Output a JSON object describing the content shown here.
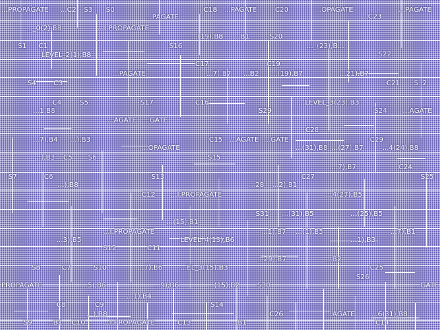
{
  "colors": {
    "background": "#6f68b8",
    "wire": "#ffffff",
    "text": "#ffffff"
  },
  "labels": [
    "...PROPAGATE",
    "...C2",
    "S3",
    "S0",
    "...PAGATE",
    "C18",
    "...PAGATE",
    "C20",
    "...OPAGATE",
    "...C23",
    "...PAGATE",
    "..._0(2),B8",
    "...I.PROPAGATE",
    "...(19),B8",
    "...B1",
    "S20",
    "S1",
    "C1",
    "LEVEL_2(1),B8",
    "S16",
    "..._(23),B...",
    "S22",
    "...PAGATE",
    "C17",
    "C19",
    "...7),B7",
    "...B2",
    "...(19),B7",
    "...21),B7",
    "S4",
    "C3",
    "C21",
    "S..2",
    "C4",
    "S5",
    "S17",
    "C16",
    "...1,B8",
    "S29",
    "...LEVEL_3(23),B3",
    "S24",
    "...AGATE",
    "...AGATE",
    "...GATE",
    "C28",
    "...7),B4",
    "...),B3",
    "...OPAGATE",
    "C15",
    "...AGATE",
    "...GATE",
    "C29",
    "...(31),B8",
    "...(27),B7",
    "...4(24),B8",
    "...),B3",
    "C5",
    "S6",
    "S15",
    "...7),B7",
    "C24",
    "S7",
    "C6",
    "...),B8",
    "S13",
    "...28",
    "...2),B1",
    "C27",
    "S25",
    "C12",
    "...I.PROPAGATE",
    "...4(27),B5",
    "S31",
    "...(31),B5",
    "...(25),B5",
    "...I.PROPAGATE",
    "...(15),B1",
    "...7),B1",
    "...3),B5",
    "C11",
    "LEVEL_4(13),B6",
    "...1),B7",
    "...(1),B5",
    "...1),B3",
    "S12",
    "S8",
    "C7",
    "S10",
    "...7),B6",
    "...EL_3(15),B3",
    "...29),B7",
    "...B2",
    "C25",
    "PROPAGATE",
    "...5),B6",
    "...9),B6",
    "...(15),B2",
    "S30",
    "S26",
    "...GATE",
    "C8",
    "C9",
    "...1),B4",
    "S14",
    "S9",
    "...B1",
    "C10",
    "...),B8",
    "...I.PROPAGATE",
    "C13",
    "...B1",
    "C26",
    "...AGATE",
    "...6(31),B8",
    "C14"
  ]
}
